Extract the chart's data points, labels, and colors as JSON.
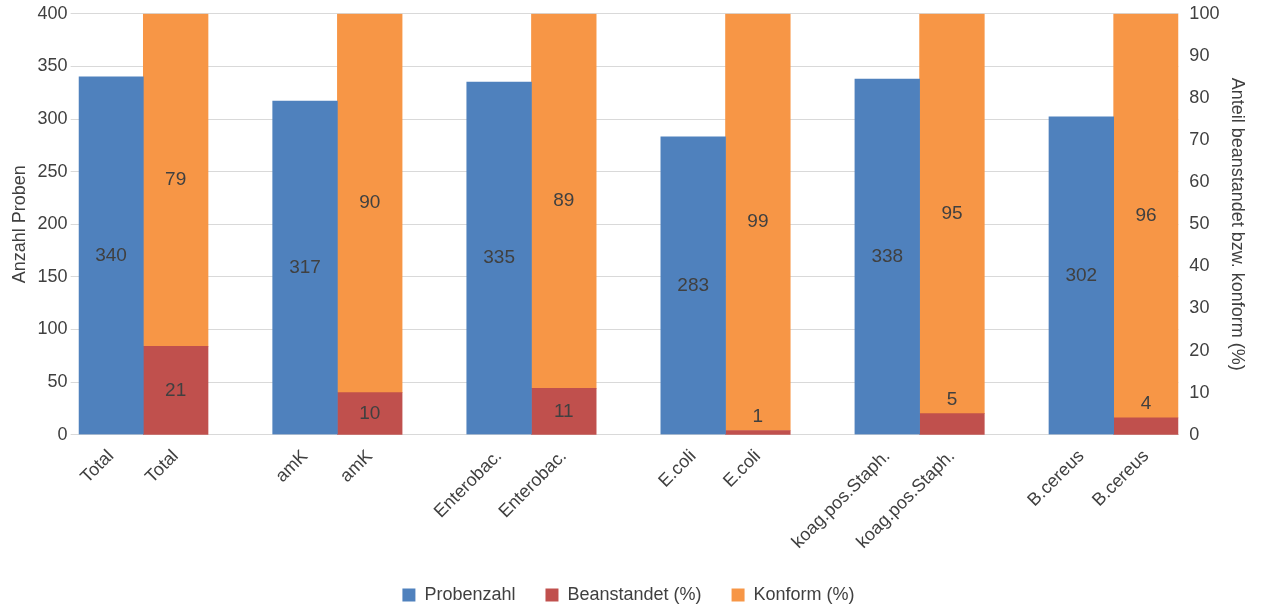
{
  "chart_data": {
    "type": "bar",
    "ylabel": "Anzahl Proben",
    "y2label": "Anteil beanstandet bzw. konform (%)",
    "categories": [
      "Total",
      "Total",
      null,
      "amK",
      "amK",
      null,
      "Enterobac.",
      "Enterobac.",
      null,
      "E.coli",
      "E.coli",
      null,
      "koag.pos.Staph.",
      "koag.pos.Staph.",
      null,
      "B.cereus",
      "B.cereus"
    ],
    "series": [
      {
        "name": "Probenzahl",
        "color": "#4f81bd",
        "values": [
          340,
          null,
          null,
          317,
          null,
          null,
          335,
          null,
          null,
          283,
          null,
          null,
          338,
          null,
          null,
          302,
          null
        ]
      },
      {
        "name": "Beanstandet (%)",
        "color": "#c0504d",
        "axis": "y2",
        "values": [
          null,
          21,
          null,
          null,
          10,
          null,
          null,
          11,
          null,
          null,
          1,
          null,
          null,
          5,
          null,
          null,
          4
        ]
      },
      {
        "name": "Konform (%)",
        "color": "#f79646",
        "axis": "y2",
        "values": [
          null,
          79,
          null,
          null,
          90,
          null,
          null,
          89,
          null,
          null,
          99,
          null,
          null,
          95,
          null,
          null,
          96
        ]
      }
    ],
    "stacked": true,
    "ylim": [
      0,
      400
    ],
    "yticks": [
      0,
      50,
      100,
      150,
      200,
      250,
      300,
      350,
      400
    ],
    "y2lim": [
      0,
      100
    ],
    "y2ticks": [
      0,
      10,
      20,
      30,
      40,
      50,
      60,
      70,
      80,
      90,
      100
    ],
    "grid": "y",
    "legend": "bottom",
    "data_labels": true
  }
}
